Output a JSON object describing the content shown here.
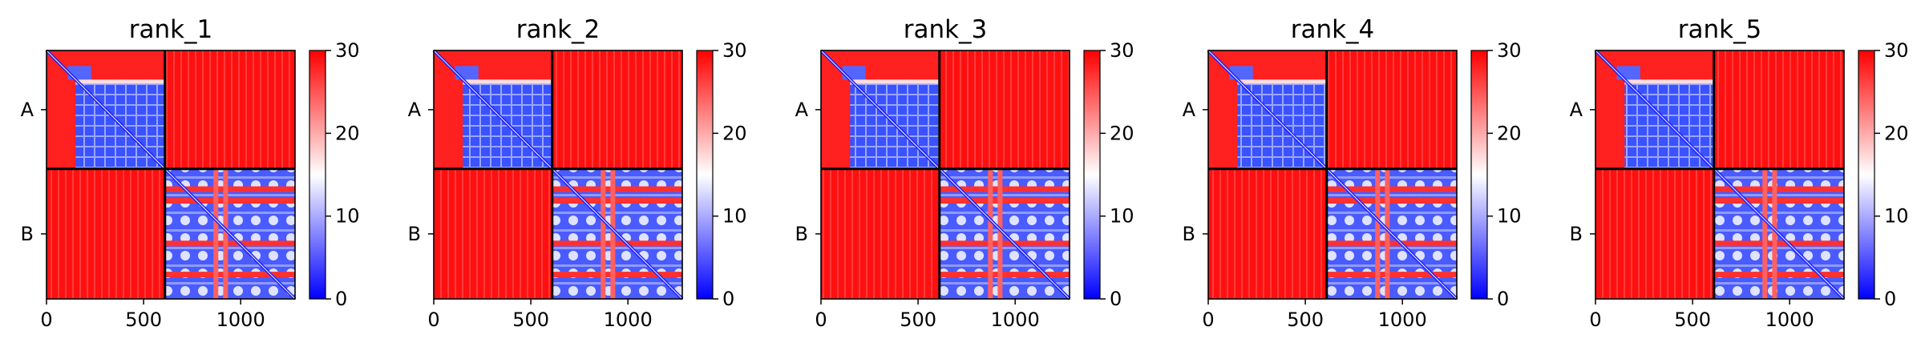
{
  "chart_data": {
    "type": "heatmap",
    "colormap": {
      "name": "bwr",
      "low_color": "#0000ff",
      "mid_color": "#ffffff",
      "high_color": "#ff0000",
      "vmin": 0,
      "vmax": 30,
      "ticks": [
        "0",
        "10",
        "20",
        "30"
      ]
    },
    "axis": {
      "x_range": [
        0,
        1280
      ],
      "y_range": [
        1280,
        0
      ],
      "x_ticks": [
        {
          "value": 0,
          "label": "0"
        },
        {
          "value": 500,
          "label": "500"
        },
        {
          "value": 1000,
          "label": "1000"
        }
      ],
      "chain_boundary": 610,
      "chains": [
        {
          "label": "A",
          "start": 0,
          "end": 610
        },
        {
          "label": "B",
          "start": 610,
          "end": 1280
        }
      ]
    },
    "panels": [
      {
        "title": "rank_1"
      },
      {
        "title": "rank_2"
      },
      {
        "title": "rank_3"
      },
      {
        "title": "rank_4"
      },
      {
        "title": "rank_5"
      }
    ]
  }
}
